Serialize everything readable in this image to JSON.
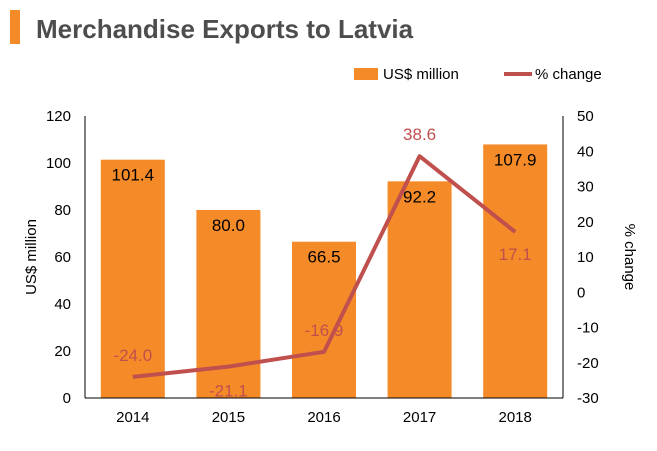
{
  "title": "Merchandise Exports to Latvia",
  "colors": {
    "accent": "#f58a28",
    "bar": "#f58a28",
    "line": "#c0504d",
    "title_text": "#4d4d4d"
  },
  "chart_data": {
    "type": "bar",
    "categories": [
      "2014",
      "2015",
      "2016",
      "2017",
      "2018"
    ],
    "series": [
      {
        "name": "US$ million",
        "type": "bar",
        "axis": "left",
        "values": [
          101.4,
          80.0,
          66.5,
          92.2,
          107.9
        ]
      },
      {
        "name": "% change",
        "type": "line",
        "axis": "right",
        "values": [
          -24.0,
          -21.1,
          -16.9,
          38.6,
          17.1
        ]
      }
    ],
    "ylabel": "US$ million",
    "y2label": "% change",
    "ylim": [
      0,
      120
    ],
    "y2lim": [
      -30,
      50
    ],
    "yticks": [
      0,
      20,
      40,
      60,
      80,
      100,
      120
    ],
    "y2ticks": [
      -30,
      -20,
      -10,
      0,
      10,
      20,
      30,
      40,
      50
    ],
    "grid": false,
    "legend_position": "top-right"
  }
}
